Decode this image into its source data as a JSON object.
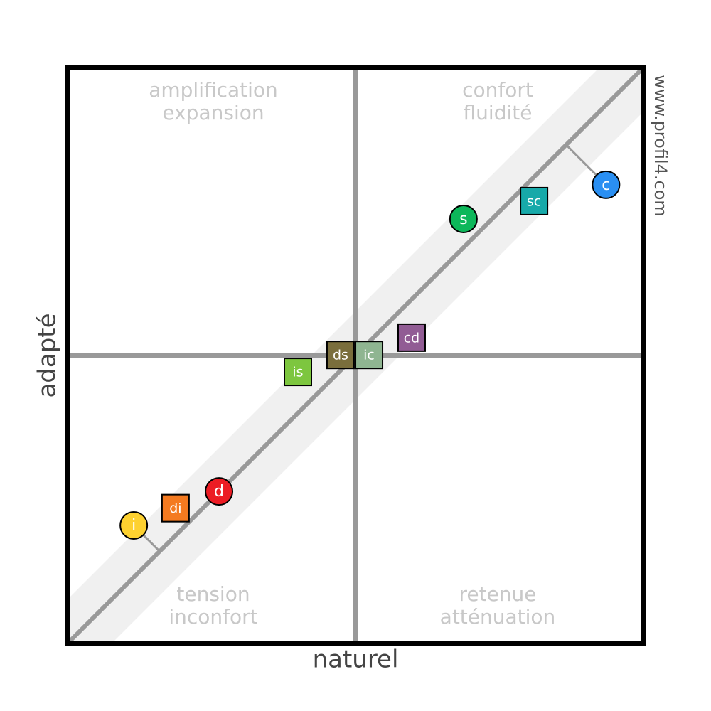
{
  "chart_data": {
    "type": "quadrant-scatter",
    "xlabel": "naturel",
    "ylabel": "adapté",
    "watermark": "www.profil4.com",
    "xlim": [
      -100,
      100
    ],
    "ylim": [
      -100,
      100
    ],
    "quadrant_labels": {
      "top_left": [
        "amplification",
        "expansion"
      ],
      "top_right": [
        "confort",
        "fluidité"
      ],
      "bottom_left": [
        "tension",
        "inconfort"
      ],
      "bottom_right": [
        "retenue",
        "atténuation"
      ]
    },
    "points": [
      {
        "name": "i",
        "marker": "circle",
        "color": "#fdd130",
        "text_color": "#ffffff",
        "x": -77,
        "y": -59
      },
      {
        "name": "di",
        "marker": "square",
        "color": "#f47a20",
        "text_color": "#ffffff",
        "x": -62.5,
        "y": -53
      },
      {
        "name": "d",
        "marker": "circle",
        "color": "#ec1c24",
        "text_color": "#ffffff",
        "x": -47.4,
        "y": -47.2
      },
      {
        "name": "is",
        "marker": "square",
        "color": "#7dc63f",
        "text_color": "#ffffff",
        "x": -20,
        "y": -5.7
      },
      {
        "name": "ds",
        "marker": "square",
        "color": "#7a6e3c",
        "text_color": "#ffffff",
        "x": -5.2,
        "y": 0.2
      },
      {
        "name": "ic",
        "marker": "square",
        "color": "#8fb591",
        "text_color": "#ffffff",
        "x": 4.7,
        "y": 0.2
      },
      {
        "name": "cd",
        "marker": "square",
        "color": "#915c94",
        "text_color": "#ffffff",
        "x": 19.5,
        "y": 6.2
      },
      {
        "name": "s",
        "marker": "circle",
        "color": "#0db75a",
        "text_color": "#ffffff",
        "x": 37.5,
        "y": 47.4
      },
      {
        "name": "sc",
        "marker": "square",
        "color": "#17a9a9",
        "text_color": "#ffffff",
        "x": 62,
        "y": 53.6
      },
      {
        "name": "c",
        "marker": "circle",
        "color": "#2a8ff2",
        "text_color": "#ffffff",
        "x": 87,
        "y": 59.3
      }
    ]
  }
}
